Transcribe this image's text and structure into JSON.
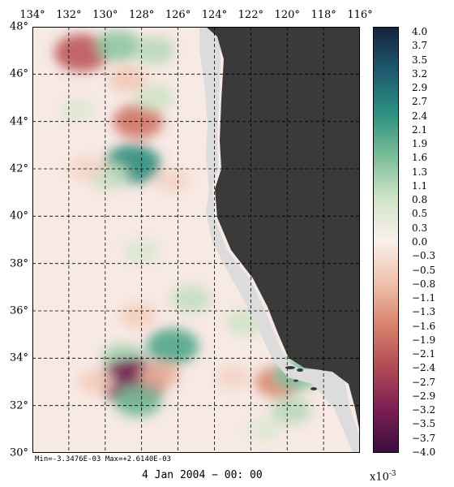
{
  "map": {
    "lon_labels": [
      "134°",
      "132°",
      "130°",
      "128°",
      "126°",
      "124°",
      "122°",
      "120°",
      "118°",
      "116°"
    ],
    "lat_labels": [
      "48°",
      "46°",
      "44°",
      "42°",
      "40°",
      "38°",
      "36°",
      "34°",
      "32°",
      "30°"
    ],
    "lon_range": [
      134,
      116
    ],
    "lat_range": [
      30,
      48
    ],
    "ocean_base_color": "#f7e9e4",
    "land_color": "#3a3a3a",
    "coast_color": "#dcdcdc",
    "anomalies": [
      {
        "lon": 131.3,
        "lat": 46.9,
        "value": -2.2
      },
      {
        "lon": 129.3,
        "lat": 47.2,
        "value": 1.4
      },
      {
        "lon": 127.3,
        "lat": 47.0,
        "value": 1.0
      },
      {
        "lon": 128.8,
        "lat": 45.8,
        "value": -0.7
      },
      {
        "lon": 128.2,
        "lat": 44.0,
        "value": -1.8
      },
      {
        "lon": 127.3,
        "lat": 45.0,
        "value": 0.8
      },
      {
        "lon": 128.5,
        "lat": 42.2,
        "value": 2.4
      },
      {
        "lon": 129.8,
        "lat": 41.7,
        "value": 0.9
      },
      {
        "lon": 131.5,
        "lat": 44.5,
        "value": 0.5
      },
      {
        "lon": 126.3,
        "lat": 41.5,
        "value": -0.5
      },
      {
        "lon": 131.0,
        "lat": 42.0,
        "value": -0.5
      },
      {
        "lon": 128.0,
        "lat": 38.5,
        "value": 0.6
      },
      {
        "lon": 125.3,
        "lat": 36.5,
        "value": 0.9
      },
      {
        "lon": 122.3,
        "lat": 35.5,
        "value": 0.8
      },
      {
        "lon": 128.2,
        "lat": 35.8,
        "value": -0.6
      },
      {
        "lon": 126.3,
        "lat": 34.5,
        "value": 2.0
      },
      {
        "lon": 129.0,
        "lat": 34.0,
        "value": 1.2
      },
      {
        "lon": 128.5,
        "lat": 33.0,
        "value": -3.3
      },
      {
        "lon": 127.0,
        "lat": 33.3,
        "value": -1.0
      },
      {
        "lon": 128.2,
        "lat": 32.2,
        "value": 1.6
      },
      {
        "lon": 130.5,
        "lat": 33.0,
        "value": -0.6
      },
      {
        "lon": 120.5,
        "lat": 33.0,
        "value": -1.5
      },
      {
        "lon": 119.5,
        "lat": 33.3,
        "value": 1.5
      },
      {
        "lon": 119.8,
        "lat": 31.8,
        "value": 1.0
      },
      {
        "lon": 123.0,
        "lat": 33.2,
        "value": -0.5
      },
      {
        "lon": 121.3,
        "lat": 31.0,
        "value": 0.5
      }
    ]
  },
  "colorbar": {
    "labels": [
      "4.0",
      "3.7",
      "3.5",
      "3.2",
      "2.9",
      "2.7",
      "2.4",
      "2.1",
      "1.9",
      "1.6",
      "1.3",
      "1.1",
      "0.8",
      "0.5",
      "0.3",
      "0.0",
      "−0.3",
      "−0.5",
      "−0.8",
      "−1.1",
      "−1.3",
      "−1.6",
      "−1.9",
      "−2.1",
      "−2.4",
      "−2.7",
      "−2.9",
      "−3.2",
      "−3.5",
      "−3.7",
      "−4.0"
    ],
    "min": -4.0,
    "max": 4.0,
    "colors": [
      "#3a0f3d",
      "#7a1e52",
      "#b24a55",
      "#d8836c",
      "#f0c2ad",
      "#faf1ec",
      "#cfe3c7",
      "#78bc96",
      "#2b8f80",
      "#1c5a6e",
      "#17223e"
    ],
    "scale_label": "x10",
    "scale_exp": "-3"
  },
  "footer": {
    "minmax": "Min=-3.3476E-03   Max=+2.6140E-03",
    "timestamp": "4 Jan 2004 − 00: 00"
  }
}
